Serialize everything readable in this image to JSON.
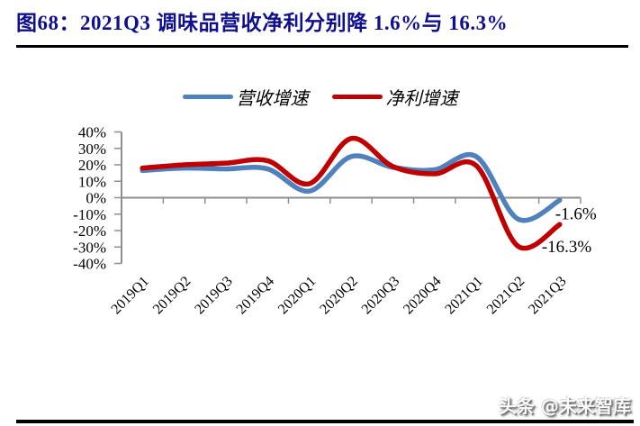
{
  "figure": {
    "title": "图68：2021Q3 调味品营收净利分别降 1.6%与 16.3%",
    "watermark": "头条 @未来智库"
  },
  "chart_data": {
    "type": "line",
    "smooth": true,
    "grid": false,
    "legend_position": "top-center",
    "categories": [
      "2019Q1",
      "2019Q2",
      "2019Q3",
      "2019Q4",
      "2020Q1",
      "2020Q2",
      "2020Q3",
      "2020Q4",
      "2021Q1",
      "2021Q2",
      "2021Q3"
    ],
    "series": [
      {
        "name": "营收增速",
        "color": "#4f81bd",
        "values": [
          16.5,
          18.0,
          17.5,
          17.5,
          4.0,
          25.0,
          18.5,
          17.0,
          25.0,
          -13.0,
          -1.6
        ],
        "end_label": "-1.6%"
      },
      {
        "name": "净利增速",
        "color": "#c00000",
        "values": [
          18.0,
          20.0,
          21.0,
          22.5,
          8.5,
          36.0,
          19.0,
          14.5,
          19.5,
          -29.5,
          -16.3
        ],
        "end_label": "-16.3%"
      }
    ],
    "ylim": [
      -40,
      40
    ],
    "ytick_step": 10,
    "ytick_labels": [
      "40%",
      "30%",
      "20%",
      "10%",
      "0%",
      "-10%",
      "-20%",
      "-30%",
      "-40%"
    ],
    "axis_color": "#8e8e8e",
    "label_color": "#000000"
  }
}
